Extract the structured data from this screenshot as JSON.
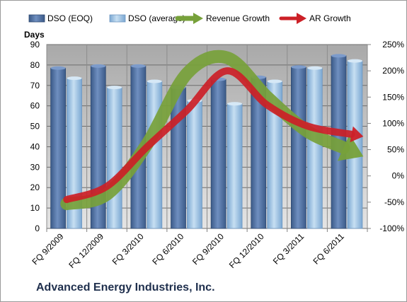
{
  "company_name": "Advanced Energy Industries, Inc.",
  "chart_data": {
    "type": "bar",
    "categories": [
      "FQ 9/2009",
      "FQ 12/2009",
      "FQ 3/2010",
      "FQ 6/2010",
      "FQ 9/2010",
      "FQ 12/2010",
      "FQ 3/2011",
      "FQ 6/2011"
    ],
    "series": [
      {
        "name": "DSO (EOQ)",
        "type": "bar",
        "axis": "left",
        "color": "#4a6c9e",
        "values": [
          78.5,
          79.5,
          79.5,
          69,
          73,
          74,
          79,
          84.5
        ]
      },
      {
        "name": "DSO (average)",
        "type": "bar",
        "axis": "left",
        "color": "#9ec2e3",
        "values": [
          73.5,
          69,
          72,
          62.5,
          61,
          72,
          78.5,
          82
        ]
      },
      {
        "name": "Revenue Growth",
        "type": "line",
        "axis": "right",
        "unit": "%",
        "color": "#77a13a",
        "x": [
          0,
          1,
          2,
          3,
          4,
          5,
          6,
          7.4
        ],
        "values": [
          -53,
          -35,
          60,
          195,
          225,
          150,
          85,
          37
        ]
      },
      {
        "name": "AR Growth",
        "type": "line",
        "axis": "right",
        "unit": "%",
        "color": "#cc2027",
        "x": [
          0,
          1,
          2,
          3,
          4,
          5,
          6,
          7.4
        ],
        "values": [
          -45,
          -20,
          55,
          125,
          200,
          135,
          95,
          75
        ]
      }
    ],
    "ylabel": "Days",
    "ylim": [
      0,
      90
    ],
    "yticks": [
      0,
      10,
      20,
      30,
      40,
      50,
      60,
      70,
      80,
      90
    ],
    "y2lim": [
      -100,
      250
    ],
    "y2ticks": [
      "-100%",
      "-50%",
      "0%",
      "50%",
      "100%",
      "150%",
      "200%",
      "250%"
    ],
    "legend": "top",
    "grid": true
  }
}
